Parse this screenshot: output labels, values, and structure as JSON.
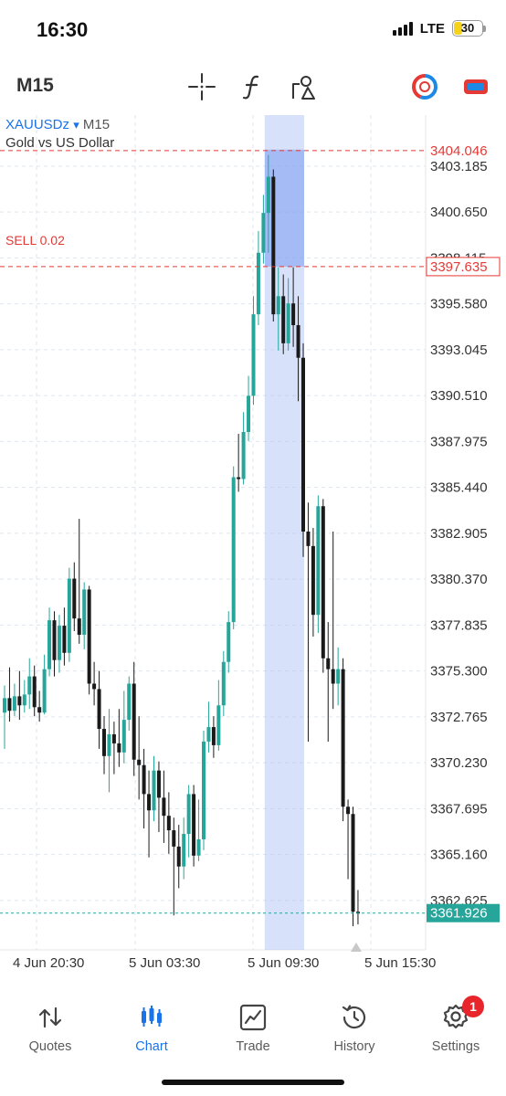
{
  "status": {
    "time": "16:30",
    "network": "LTE",
    "battery": "30",
    "battery_level": 0.3
  },
  "toolbar": {
    "timeframe": "M15",
    "icons": [
      "crosshair-icon",
      "indicators-icon",
      "objects-icon",
      "one-click-trading-icon",
      "trade-panel-icon"
    ]
  },
  "chart": {
    "symbol": "XAUUSDz",
    "symbol_arrow": "▾",
    "timeframe": "M15",
    "description": "Gold vs US Dollar",
    "sell_label": "SELL 0.02",
    "ask_price": "3404.046",
    "sell_price": "3397.635",
    "current_price": "3361.926",
    "price_ticks": [
      "3403.185",
      "3400.650",
      "3398.115",
      "3395.580",
      "3393.045",
      "3390.510",
      "3387.975",
      "3385.440",
      "3382.905",
      "3380.370",
      "3377.835",
      "3375.300",
      "3372.765",
      "3370.230",
      "3367.695",
      "3365.160",
      "3362.625"
    ],
    "time_ticks": [
      "4 Jun 20:30",
      "5 Jun 03:30",
      "5 Jun 09:30",
      "5 Jun 15:30"
    ],
    "colors": {
      "bull": "#26a69a",
      "bear": "#1a1a1a",
      "ask_line": "#e53935",
      "current": "#26a69a",
      "highlight": "#a7bdf5",
      "highlight_top": "#7a9cf0"
    }
  },
  "chart_data": {
    "type": "candlestick",
    "symbol": "XAUUSDz",
    "timeframe": "M15",
    "ylim": [
      3360.5,
      3405.5
    ],
    "candles": [
      {
        "o": 3373.0,
        "c": 3373.8,
        "h": 3374.5,
        "l": 3371.0
      },
      {
        "o": 3373.8,
        "c": 3373.1,
        "h": 3375.5,
        "l": 3372.5
      },
      {
        "o": 3373.1,
        "c": 3373.9,
        "h": 3374.6,
        "l": 3372.8
      },
      {
        "o": 3373.9,
        "c": 3373.4,
        "h": 3375.3,
        "l": 3372.6
      },
      {
        "o": 3373.4,
        "c": 3374.0,
        "h": 3374.8,
        "l": 3373.0
      },
      {
        "o": 3374.0,
        "c": 3375.0,
        "h": 3376.0,
        "l": 3373.2
      },
      {
        "o": 3375.0,
        "c": 3373.3,
        "h": 3375.6,
        "l": 3372.8
      },
      {
        "o": 3373.3,
        "c": 3373.0,
        "h": 3374.2,
        "l": 3372.5
      },
      {
        "o": 3373.0,
        "c": 3375.4,
        "h": 3376.2,
        "l": 3372.9
      },
      {
        "o": 3375.4,
        "c": 3378.1,
        "h": 3378.8,
        "l": 3375.0
      },
      {
        "o": 3378.1,
        "c": 3375.9,
        "h": 3378.6,
        "l": 3375.0
      },
      {
        "o": 3375.9,
        "c": 3377.8,
        "h": 3378.4,
        "l": 3375.2
      },
      {
        "o": 3377.8,
        "c": 3376.3,
        "h": 3378.8,
        "l": 3375.6
      },
      {
        "o": 3376.3,
        "c": 3380.4,
        "h": 3381.0,
        "l": 3375.8
      },
      {
        "o": 3380.4,
        "c": 3378.2,
        "h": 3381.3,
        "l": 3377.5
      },
      {
        "o": 3378.2,
        "c": 3377.3,
        "h": 3383.7,
        "l": 3376.8
      },
      {
        "o": 3377.3,
        "c": 3379.8,
        "h": 3380.2,
        "l": 3376.5
      },
      {
        "o": 3379.8,
        "c": 3374.6,
        "h": 3380.0,
        "l": 3374.0
      },
      {
        "o": 3374.6,
        "c": 3374.3,
        "h": 3375.8,
        "l": 3373.4
      },
      {
        "o": 3374.3,
        "c": 3372.1,
        "h": 3375.3,
        "l": 3371.0
      },
      {
        "o": 3372.1,
        "c": 3370.6,
        "h": 3372.8,
        "l": 3369.6
      },
      {
        "o": 3370.6,
        "c": 3371.8,
        "h": 3373.2,
        "l": 3368.6
      },
      {
        "o": 3371.8,
        "c": 3371.3,
        "h": 3372.5,
        "l": 3369.6
      },
      {
        "o": 3371.3,
        "c": 3370.8,
        "h": 3373.2,
        "l": 3370.0
      },
      {
        "o": 3370.8,
        "c": 3372.6,
        "h": 3374.2,
        "l": 3370.2
      },
      {
        "o": 3372.6,
        "c": 3374.6,
        "h": 3375.0,
        "l": 3372.0
      },
      {
        "o": 3374.6,
        "c": 3370.4,
        "h": 3375.8,
        "l": 3369.5
      },
      {
        "o": 3370.4,
        "c": 3370.1,
        "h": 3372.8,
        "l": 3368.2
      },
      {
        "o": 3370.1,
        "c": 3368.5,
        "h": 3371.0,
        "l": 3366.6
      },
      {
        "o": 3368.5,
        "c": 3367.6,
        "h": 3369.8,
        "l": 3365.0
      },
      {
        "o": 3367.6,
        "c": 3369.8,
        "h": 3370.6,
        "l": 3367.0
      },
      {
        "o": 3369.8,
        "c": 3368.3,
        "h": 3370.3,
        "l": 3366.4
      },
      {
        "o": 3368.3,
        "c": 3367.3,
        "h": 3369.8,
        "l": 3365.8
      },
      {
        "o": 3367.3,
        "c": 3366.5,
        "h": 3368.6,
        "l": 3365.2
      },
      {
        "o": 3366.5,
        "c": 3365.6,
        "h": 3367.2,
        "l": 3361.8
      },
      {
        "o": 3365.6,
        "c": 3364.5,
        "h": 3366.8,
        "l": 3363.3
      },
      {
        "o": 3364.5,
        "c": 3366.3,
        "h": 3367.2,
        "l": 3363.8
      },
      {
        "o": 3366.3,
        "c": 3368.5,
        "h": 3369.0,
        "l": 3365.0
      },
      {
        "o": 3368.5,
        "c": 3365.1,
        "h": 3369.0,
        "l": 3364.5
      },
      {
        "o": 3365.1,
        "c": 3366.0,
        "h": 3368.2,
        "l": 3364.8
      },
      {
        "o": 3366.0,
        "c": 3371.4,
        "h": 3372.0,
        "l": 3365.4
      },
      {
        "o": 3371.4,
        "c": 3372.2,
        "h": 3373.6,
        "l": 3370.8
      },
      {
        "o": 3372.2,
        "c": 3371.2,
        "h": 3372.8,
        "l": 3370.5
      },
      {
        "o": 3371.2,
        "c": 3373.4,
        "h": 3374.8,
        "l": 3370.9
      },
      {
        "o": 3373.4,
        "c": 3375.8,
        "h": 3376.4,
        "l": 3372.8
      },
      {
        "o": 3375.8,
        "c": 3378.0,
        "h": 3378.6,
        "l": 3375.2
      },
      {
        "o": 3378.0,
        "c": 3386.0,
        "h": 3386.6,
        "l": 3377.6
      },
      {
        "o": 3386.0,
        "c": 3385.9,
        "h": 3388.4,
        "l": 3385.2
      },
      {
        "o": 3385.9,
        "c": 3388.5,
        "h": 3389.6,
        "l": 3385.6
      },
      {
        "o": 3388.5,
        "c": 3390.5,
        "h": 3391.6,
        "l": 3388.0
      },
      {
        "o": 3390.5,
        "c": 3395.0,
        "h": 3396.0,
        "l": 3390.0
      },
      {
        "o": 3395.0,
        "c": 3398.4,
        "h": 3399.6,
        "l": 3394.4
      },
      {
        "o": 3398.4,
        "c": 3400.6,
        "h": 3401.6,
        "l": 3397.8
      },
      {
        "o": 3400.6,
        "c": 3402.6,
        "h": 3403.8,
        "l": 3398.4
      },
      {
        "o": 3402.6,
        "c": 3395.0,
        "h": 3403.0,
        "l": 3394.6
      },
      {
        "o": 3395.0,
        "c": 3396.0,
        "h": 3397.6,
        "l": 3393.0
      },
      {
        "o": 3396.0,
        "c": 3393.4,
        "h": 3397.2,
        "l": 3392.8
      },
      {
        "o": 3393.4,
        "c": 3395.6,
        "h": 3397.0,
        "l": 3393.0
      },
      {
        "o": 3395.6,
        "c": 3394.4,
        "h": 3397.6,
        "l": 3393.2
      },
      {
        "o": 3394.4,
        "c": 3392.6,
        "h": 3396.0,
        "l": 3390.2
      },
      {
        "o": 3392.6,
        "c": 3383.0,
        "h": 3393.4,
        "l": 3381.6
      },
      {
        "o": 3383.0,
        "c": 3382.2,
        "h": 3384.6,
        "l": 3371.4
      },
      {
        "o": 3382.2,
        "c": 3378.4,
        "h": 3383.2,
        "l": 3377.2
      },
      {
        "o": 3378.4,
        "c": 3384.4,
        "h": 3385.0,
        "l": 3377.4
      },
      {
        "o": 3384.4,
        "c": 3376.0,
        "h": 3384.8,
        "l": 3375.2
      },
      {
        "o": 3376.0,
        "c": 3375.4,
        "h": 3378.0,
        "l": 3371.4
      },
      {
        "o": 3375.4,
        "c": 3374.6,
        "h": 3383.0,
        "l": 3373.2
      },
      {
        "o": 3374.6,
        "c": 3375.4,
        "h": 3376.6,
        "l": 3373.4
      },
      {
        "o": 3375.4,
        "c": 3367.8,
        "h": 3376.0,
        "l": 3367.0
      },
      {
        "o": 3367.8,
        "c": 3367.4,
        "h": 3368.2,
        "l": 3363.8
      },
      {
        "o": 3367.4,
        "c": 3362.0,
        "h": 3367.8,
        "l": 3361.2
      },
      {
        "o": 3362.0,
        "c": 3361.9,
        "h": 3363.2,
        "l": 3361.3
      }
    ],
    "price_ticks": [
      3403.185,
      3400.65,
      3398.115,
      3395.58,
      3393.045,
      3390.51,
      3387.975,
      3385.44,
      3382.905,
      3380.37,
      3377.835,
      3375.3,
      3372.765,
      3370.23,
      3367.695,
      3365.16,
      3362.625
    ],
    "time_ticks": [
      "4 Jun 20:30",
      "5 Jun 03:30",
      "5 Jun 09:30",
      "5 Jun 15:30"
    ],
    "ask_price": 3404.046,
    "sell_order": {
      "label": "SELL 0.02",
      "price": 3397.635
    },
    "current_price": 3361.926,
    "highlight_range_candles": [
      53,
      60
    ]
  },
  "tabs": [
    {
      "label": "Quotes",
      "icon": "quotes-icon"
    },
    {
      "label": "Chart",
      "icon": "chart-icon",
      "active": true
    },
    {
      "label": "Trade",
      "icon": "trade-icon"
    },
    {
      "label": "History",
      "icon": "history-icon"
    },
    {
      "label": "Settings",
      "icon": "settings-icon",
      "badge": "1"
    }
  ]
}
